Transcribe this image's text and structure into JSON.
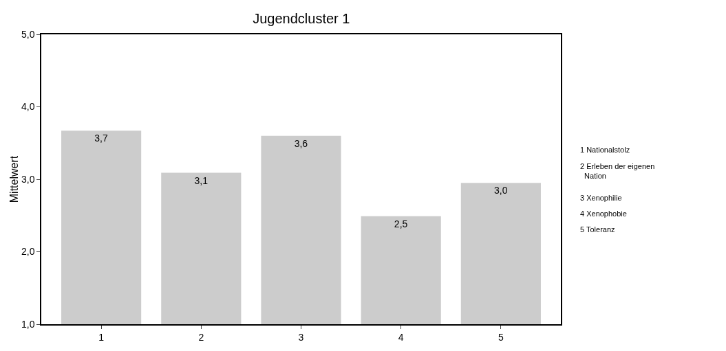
{
  "chart_data": {
    "type": "bar",
    "title": "Jugendcluster 1",
    "ylabel": "Mittelwert",
    "categories": [
      "1",
      "2",
      "3",
      "4",
      "5"
    ],
    "values": [
      3.67,
      3.09,
      3.6,
      2.49,
      2.95
    ],
    "value_labels": [
      "3,7",
      "3,1",
      "3,6",
      "2,5",
      "3,0"
    ],
    "color": "#cccccc",
    "ylim": [
      1,
      5
    ],
    "yticks": [
      {
        "value": 1,
        "label": "1,0"
      },
      {
        "value": 2,
        "label": "2,0"
      },
      {
        "value": 3,
        "label": "3,0"
      },
      {
        "value": 4,
        "label": "4,0"
      },
      {
        "value": 5,
        "label": "5,0"
      }
    ],
    "annotations": [
      "1 Nationalstolz",
      "2 Erleben der eigenen Nation",
      "3 Xenophilie",
      "4 Xenophobie",
      "5 Toleranz"
    ]
  }
}
